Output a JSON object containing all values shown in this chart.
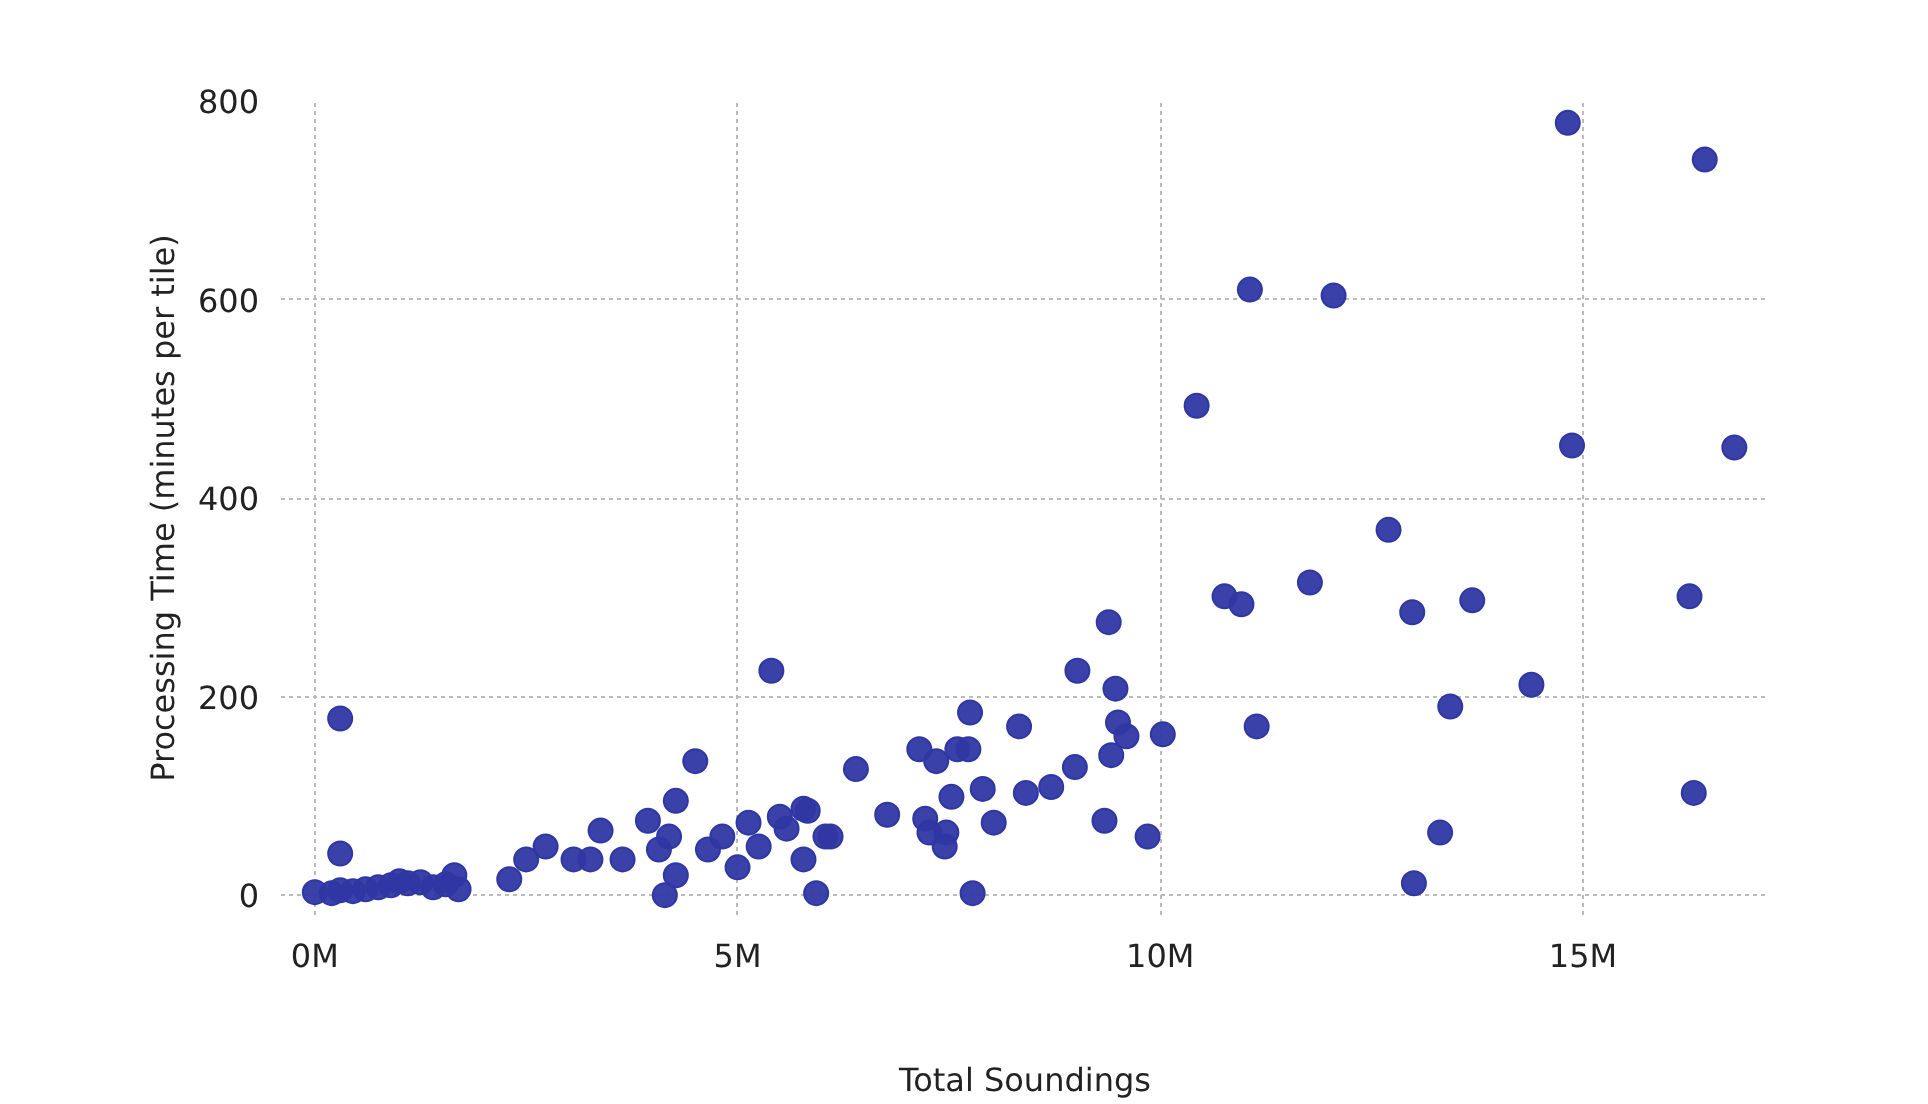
{
  "chart_data": {
    "type": "scatter",
    "xlabel": "Total Soundings",
    "ylabel": "Processing Time (minutes per tile)",
    "x": [
      0.0,
      0.2,
      0.3,
      0.45,
      0.6,
      0.75,
      0.9,
      1.0,
      1.1,
      1.25,
      1.4,
      1.55,
      1.65,
      1.7,
      0.3,
      0.3,
      2.3,
      2.5,
      2.73,
      3.06,
      3.26,
      3.38,
      3.64,
      3.94,
      4.07,
      4.27,
      4.5,
      4.27,
      4.14,
      4.19,
      4.65,
      4.82,
      5.0,
      5.13,
      5.25,
      5.4,
      5.5,
      5.58,
      5.78,
      5.78,
      5.93,
      6.04,
      5.83,
      6.1,
      6.4,
      6.77,
      7.15,
      7.35,
      7.6,
      7.73,
      7.75,
      7.22,
      7.27,
      7.47,
      7.45,
      7.53,
      7.9,
      8.03,
      7.78,
      8.33,
      8.41,
      8.71,
      8.99,
      9.02,
      9.39,
      9.47,
      9.5,
      9.6,
      9.42,
      9.34,
      9.85,
      10.03,
      11.14,
      14.82,
      16.44,
      11.06,
      12.05,
      10.43,
      14.87,
      16.79,
      12.7,
      10.76,
      10.96,
      11.77,
      12.98,
      13.69,
      16.26,
      14.39,
      13.43,
      16.31,
      13.31,
      13.0
    ],
    "values": [
      3,
      2,
      5,
      4,
      6,
      8,
      10,
      14,
      12,
      13,
      8,
      11,
      20,
      6,
      178,
      42,
      16,
      36,
      49,
      36,
      36,
      65,
      36,
      75,
      46,
      95,
      135,
      20,
      0,
      59,
      46,
      59,
      28,
      73,
      49,
      226,
      79,
      67,
      87,
      36,
      2,
      59,
      85,
      59,
      127,
      81,
      147,
      135,
      147,
      147,
      184,
      77,
      63,
      63,
      49,
      99,
      107,
      73,
      2,
      170,
      103,
      109,
      129,
      226,
      275,
      208,
      174,
      160,
      141,
      75,
      59,
      162,
      170,
      778,
      741,
      610,
      604,
      493,
      453,
      451,
      368,
      301,
      293,
      315,
      285,
      297,
      301,
      212,
      190,
      103,
      63,
      12
    ],
    "color": "#2f37a3",
    "marker": "circle",
    "xlim": [
      -0.4,
      17.2
    ],
    "ylim": [
      -20,
      800
    ],
    "xticks": [
      {
        "value": 0,
        "label": "0M"
      },
      {
        "value": 5,
        "label": "5M"
      },
      {
        "value": 10,
        "label": "10M"
      },
      {
        "value": 15,
        "label": "15M"
      }
    ],
    "yticks": [
      0,
      200,
      400,
      600,
      800
    ],
    "grid": true
  }
}
